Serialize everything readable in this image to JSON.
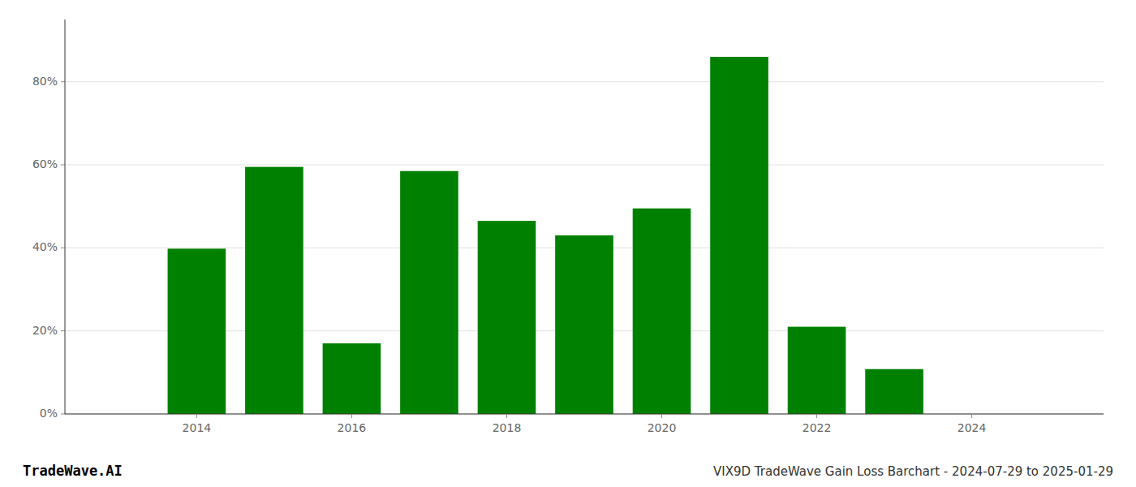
{
  "chart_data": {
    "type": "bar",
    "x": [
      2013,
      2014,
      2015,
      2016,
      2017,
      2018,
      2019,
      2020,
      2021,
      2022,
      2023,
      2024
    ],
    "values": [
      0.0,
      0.398,
      0.595,
      0.17,
      0.585,
      0.465,
      0.43,
      0.495,
      0.86,
      0.21,
      0.108,
      0.0
    ],
    "color": "#008000",
    "xlim": [
      2012.3,
      2025.7
    ],
    "xticks": [
      2014,
      2016,
      2018,
      2020,
      2022,
      2024
    ],
    "ylim": [
      0,
      0.95
    ],
    "yticks": [
      {
        "value": 0.0,
        "label": "0%"
      },
      {
        "value": 0.2,
        "label": "20%"
      },
      {
        "value": 0.4,
        "label": "40%"
      },
      {
        "value": 0.6,
        "label": "60%"
      },
      {
        "value": 0.8,
        "label": "80%"
      }
    ],
    "grid": true,
    "annotations": [
      "TradeWave.AI",
      "VIX9D TradeWave Gain Loss Barchart - 2024-07-29 to 2025-01-29"
    ]
  }
}
